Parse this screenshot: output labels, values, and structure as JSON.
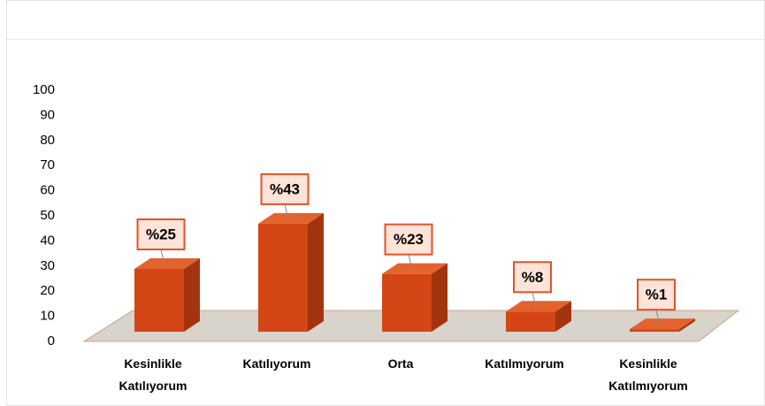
{
  "chart_data": {
    "type": "bar3d",
    "categories": [
      "Kesinlikle Katılıyorum",
      "Katılıyorum",
      "Orta",
      "Katılmıyorum",
      "Kesinlikle Katılmıyorum"
    ],
    "values": [
      25,
      43,
      23,
      8,
      1
    ],
    "value_labels": [
      "%25",
      "%43",
      "%23",
      "%8",
      "%1"
    ],
    "color": "#d44615",
    "ylim": [
      0,
      100
    ],
    "yticks": [
      0,
      10,
      20,
      30,
      40,
      50,
      60,
      70,
      80,
      90,
      100
    ]
  }
}
